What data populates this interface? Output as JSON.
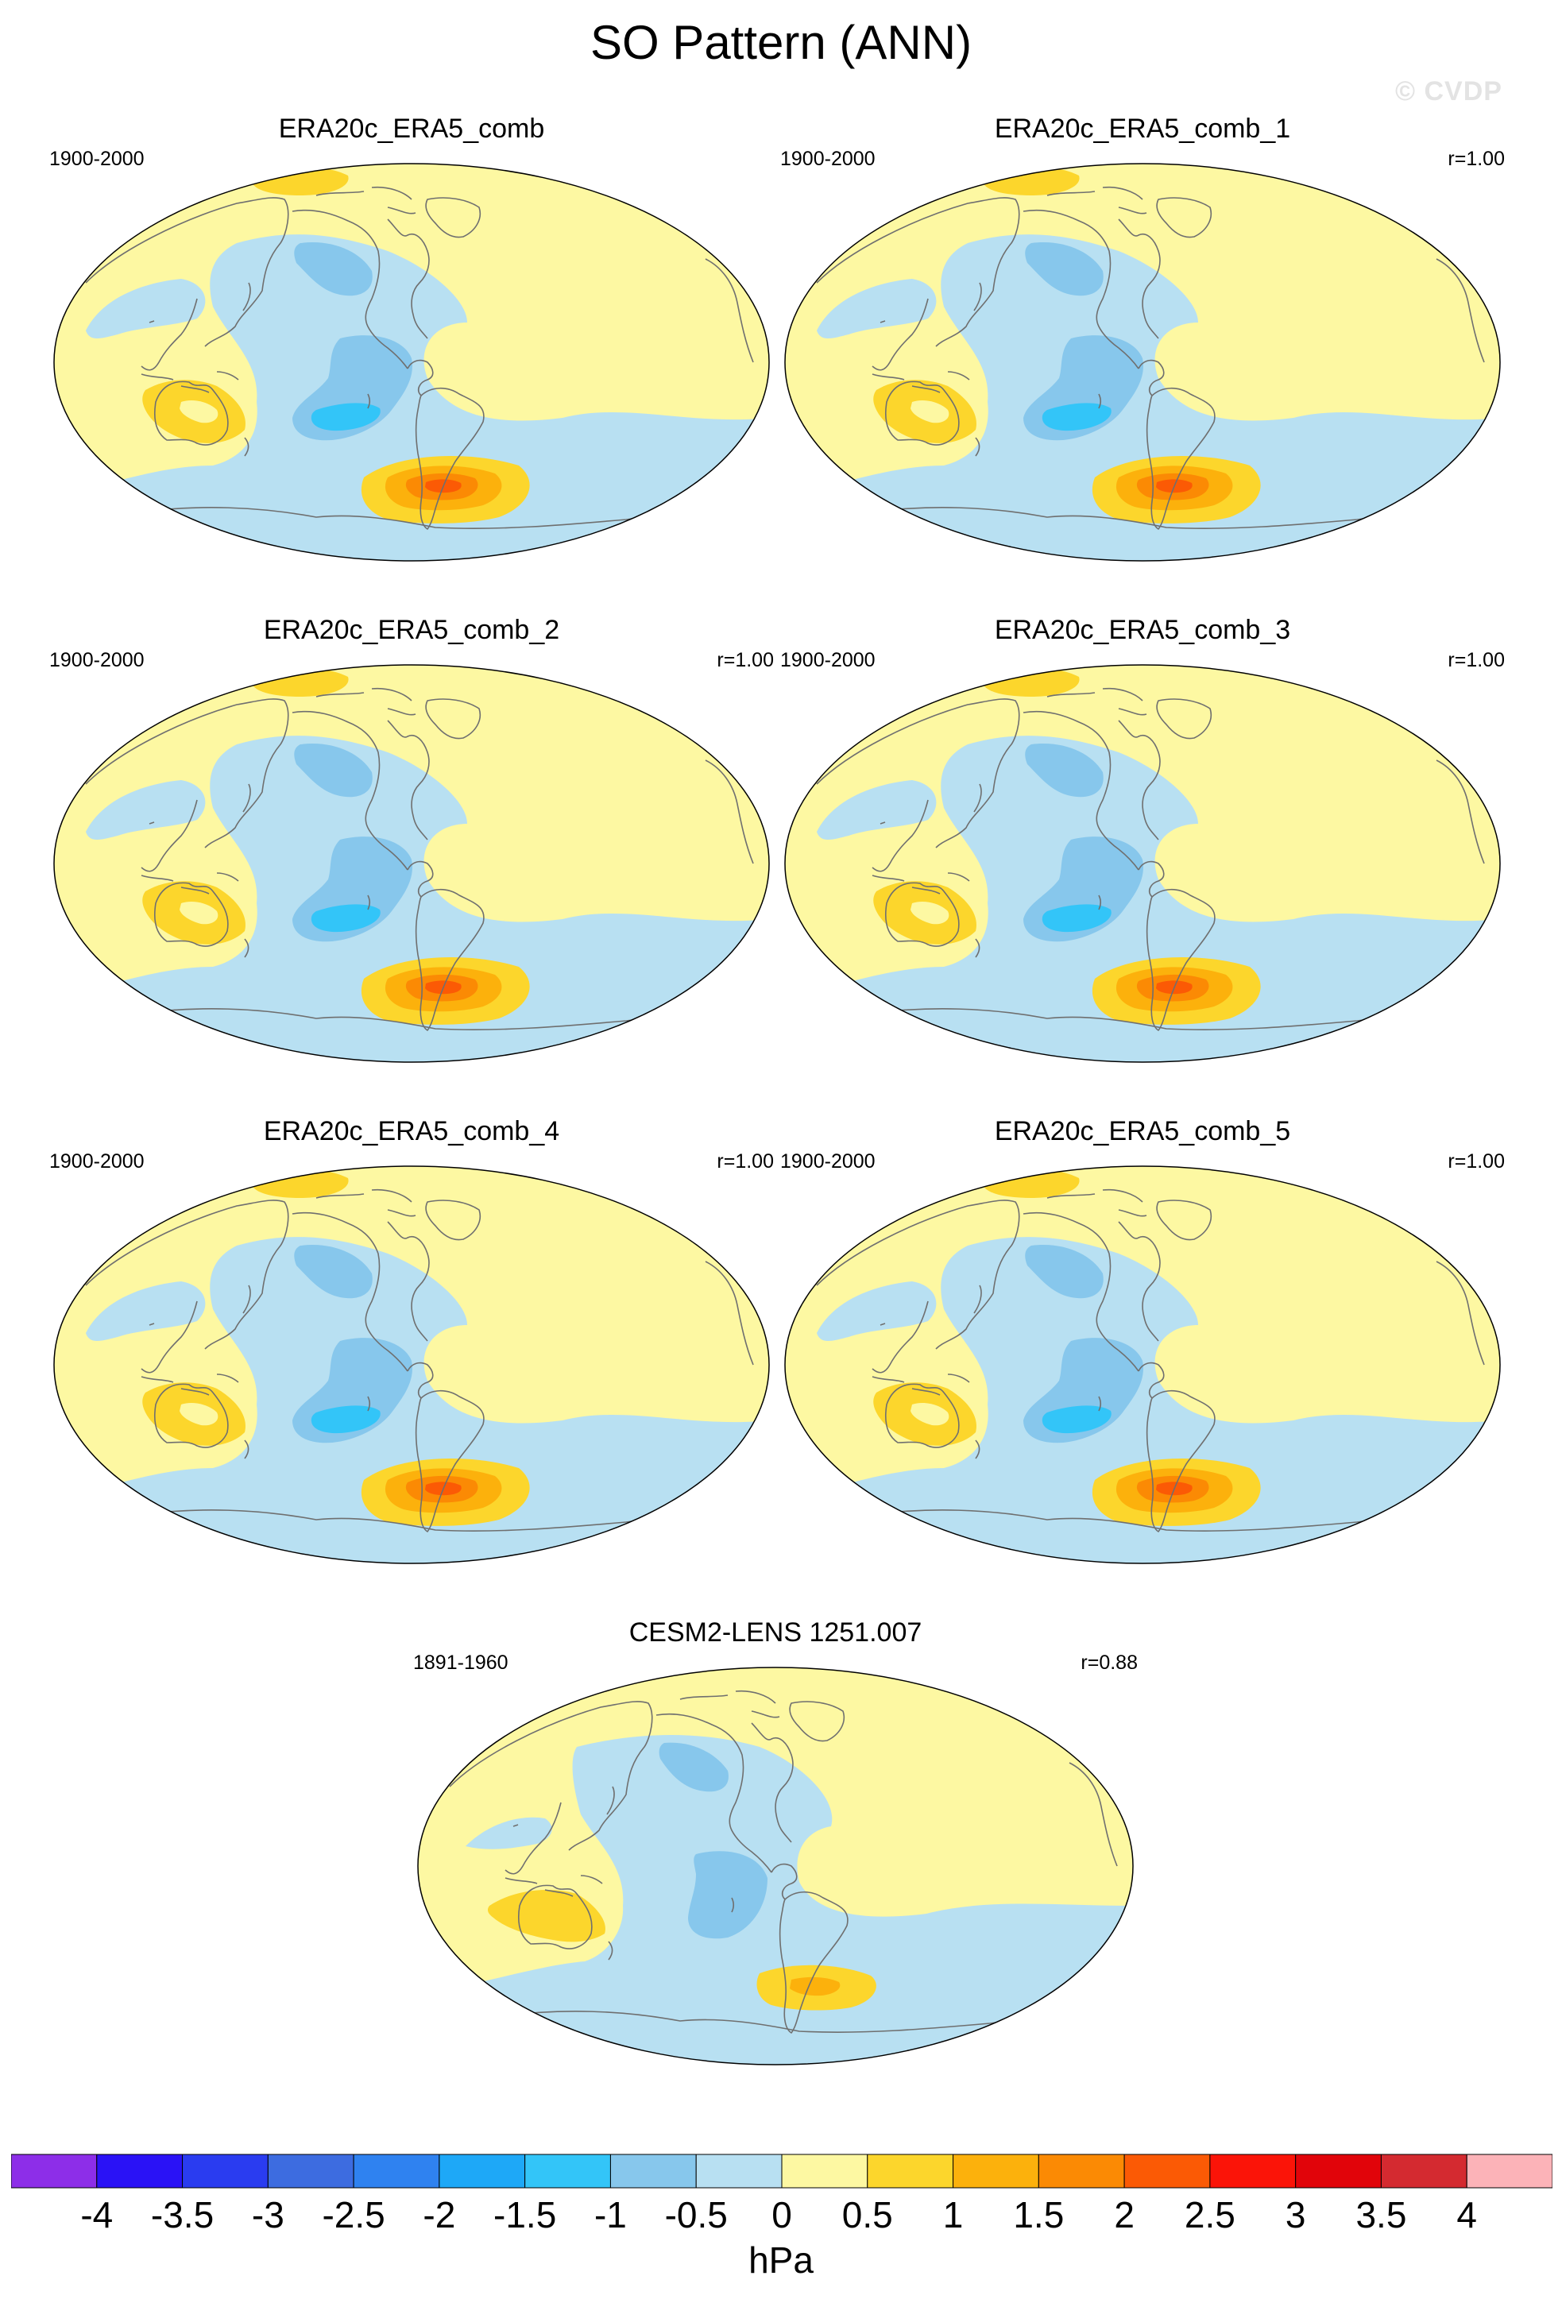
{
  "title": "SO Pattern (ANN)",
  "watermark": "© CVDP",
  "panels": [
    {
      "name": "ERA20c_ERA5_comb",
      "period": "1900-2000",
      "corr": "",
      "variant": "obs"
    },
    {
      "name": "ERA20c_ERA5_comb_1",
      "period": "1900-2000",
      "corr": "r=1.00",
      "variant": "obs"
    },
    {
      "name": "ERA20c_ERA5_comb_2",
      "period": "1900-2000",
      "corr": "r=1.00",
      "variant": "obs"
    },
    {
      "name": "ERA20c_ERA5_comb_3",
      "period": "1900-2000",
      "corr": "r=1.00",
      "variant": "obs"
    },
    {
      "name": "ERA20c_ERA5_comb_4",
      "period": "1900-2000",
      "corr": "r=1.00",
      "variant": "obs"
    },
    {
      "name": "ERA20c_ERA5_comb_5",
      "period": "1900-2000",
      "corr": "r=1.00",
      "variant": "obs"
    },
    {
      "name": "CESM2-LENS 1251.007",
      "period": "1891-1960",
      "corr": "r=0.88",
      "variant": "model"
    }
  ],
  "colorbar": {
    "units": "hPa",
    "labels": [
      "-4",
      "-3.5",
      "-3",
      "-2.5",
      "-2",
      "-1.5",
      "-1",
      "-0.5",
      "0",
      "0.5",
      "1",
      "1.5",
      "2",
      "2.5",
      "3",
      "3.5",
      "4"
    ],
    "colors": [
      "#8d2ee8",
      "#2a12f6",
      "#2a3cf0",
      "#3d6ce0",
      "#2f82f0",
      "#1ea8f7",
      "#33c5f8",
      "#87c7ec",
      "#b8e0f2",
      "#fdf8a2",
      "#fcd62c",
      "#fcb10c",
      "#fb8a04",
      "#fb5a05",
      "#fb1408",
      "#e1040a",
      "#d42a30",
      "#fcb3b8"
    ]
  },
  "colors": {
    "background": "#ffffff",
    "land_outline": "#6f6f6f",
    "map_border": "#000000"
  }
}
